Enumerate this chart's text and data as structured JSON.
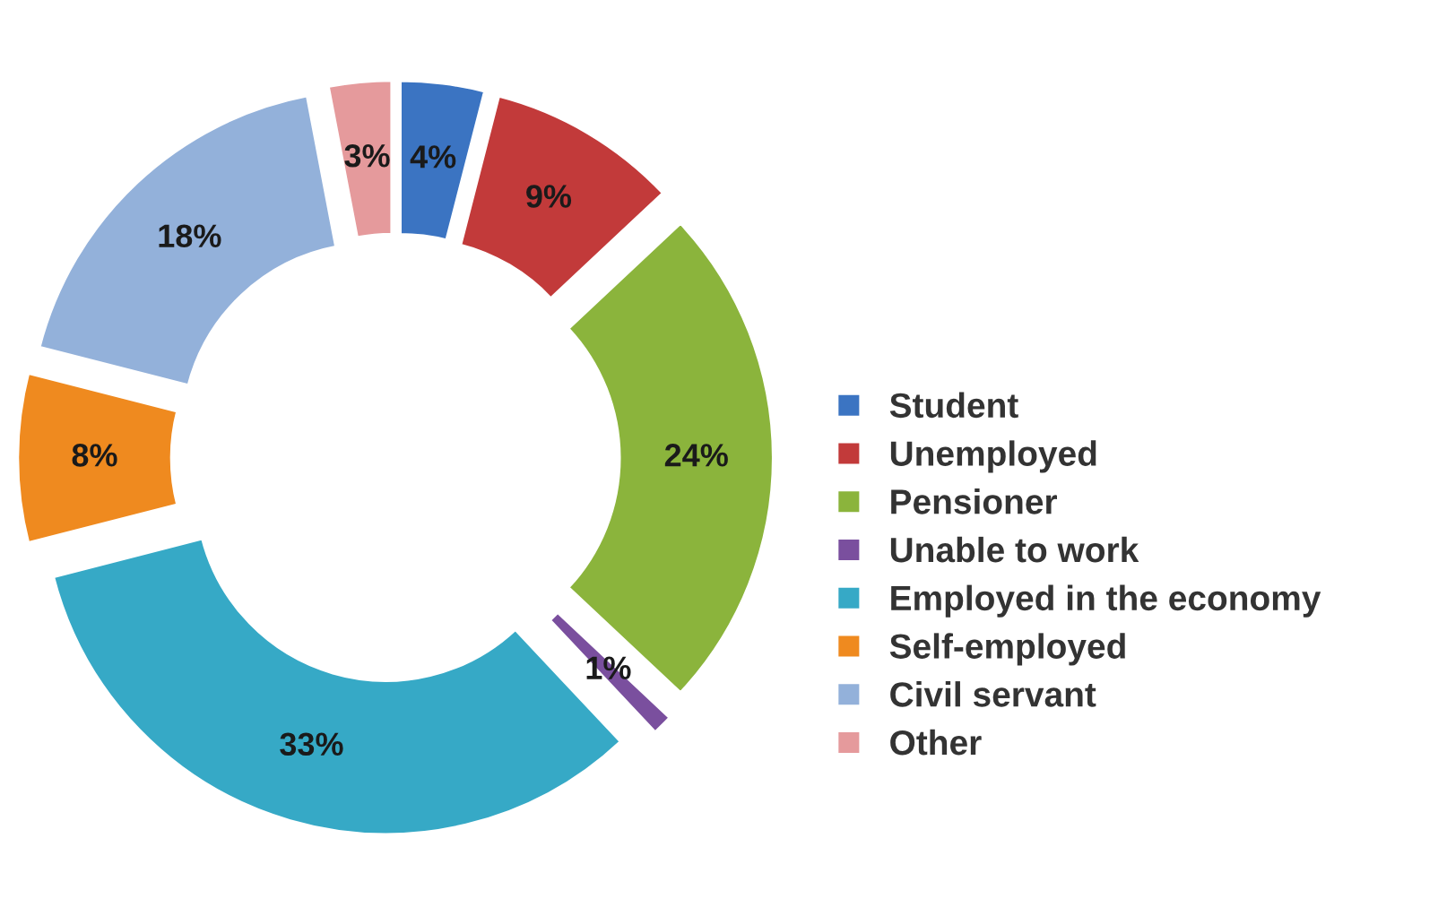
{
  "chart_data": {
    "type": "donut",
    "categories": [
      "Student",
      "Unemployed",
      "Pensioner",
      "Unable to work",
      "Employed in the economy",
      "Self-employed",
      "Civil servant",
      "Other"
    ],
    "values": [
      4,
      9,
      24,
      1,
      33,
      8,
      18,
      3
    ],
    "colors": [
      "#3b74c2",
      "#c23a3a",
      "#8bb43c",
      "#7a4f9e",
      "#36a9c6",
      "#ef8a1f",
      "#93b1da",
      "#e59a9c"
    ],
    "value_labels": [
      "4%",
      "9%",
      "24%",
      "1%",
      "33%",
      "8%",
      "18%",
      "3%"
    ],
    "legend": "right"
  }
}
